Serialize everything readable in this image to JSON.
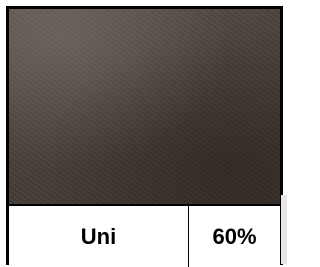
{
  "swatch": {
    "name": "Uni",
    "percentage": "60%"
  }
}
